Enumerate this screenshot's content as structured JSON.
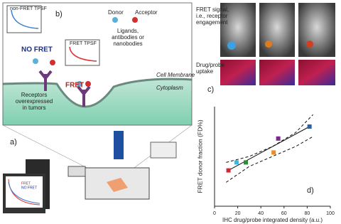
{
  "panel_b": {
    "label": "b)",
    "non_fret_tpsf": "non-FRET TPSF",
    "fret_tpsf": "FRET TPSF",
    "donor": "Donor",
    "acceptor": "Acceptor",
    "ligands": [
      "Ligands,",
      "antibodies or",
      "nanobodies"
    ],
    "no_fret": "NO FRET",
    "fret": "FRET",
    "cell_membrane": "Cell Membrane",
    "cytoplasm": "Cytoplasm",
    "receptors": [
      "Receptors",
      "overexpressed",
      "in tumors"
    ]
  },
  "panel_a": {
    "label": "a)",
    "monitor_legend": [
      "FRET",
      "NO FRET"
    ]
  },
  "panel_c": {
    "label": "c)",
    "fret_signal": [
      "FRET signal,",
      "i.e., receptor",
      "engagement"
    ],
    "uptake": [
      "Drug/probe",
      "uptake"
    ]
  },
  "chart_data": {
    "type": "scatter",
    "panel_label": "d)",
    "x_label": "IHC drug/probe integrated density (a.u.)",
    "y_label": "FRET donor fraction (FD%)",
    "x": [
      12,
      19,
      27,
      51,
      55,
      82
    ],
    "values": [
      18,
      22,
      22,
      27,
      34,
      40
    ],
    "colors": [
      "#d9262e",
      "#3fb6e0",
      "#2e8b3a",
      "#f08a24",
      "#7b2a8c",
      "#2b5fa8"
    ],
    "fit": {
      "x": [
        12,
        82
      ],
      "values": [
        18,
        40
      ]
    },
    "ci_upper": {
      "x": [
        10,
        30,
        50,
        70,
        85
      ],
      "values": [
        22,
        25,
        30,
        37,
        46
      ]
    },
    "ci_lower": {
      "x": [
        10,
        30,
        50,
        70,
        85
      ],
      "values": [
        12,
        20,
        25,
        30,
        35
      ]
    },
    "xlim": [
      0,
      100
    ],
    "ylim": [
      0,
      50
    ],
    "xticks": [
      0,
      20,
      40,
      60,
      80,
      100
    ]
  }
}
